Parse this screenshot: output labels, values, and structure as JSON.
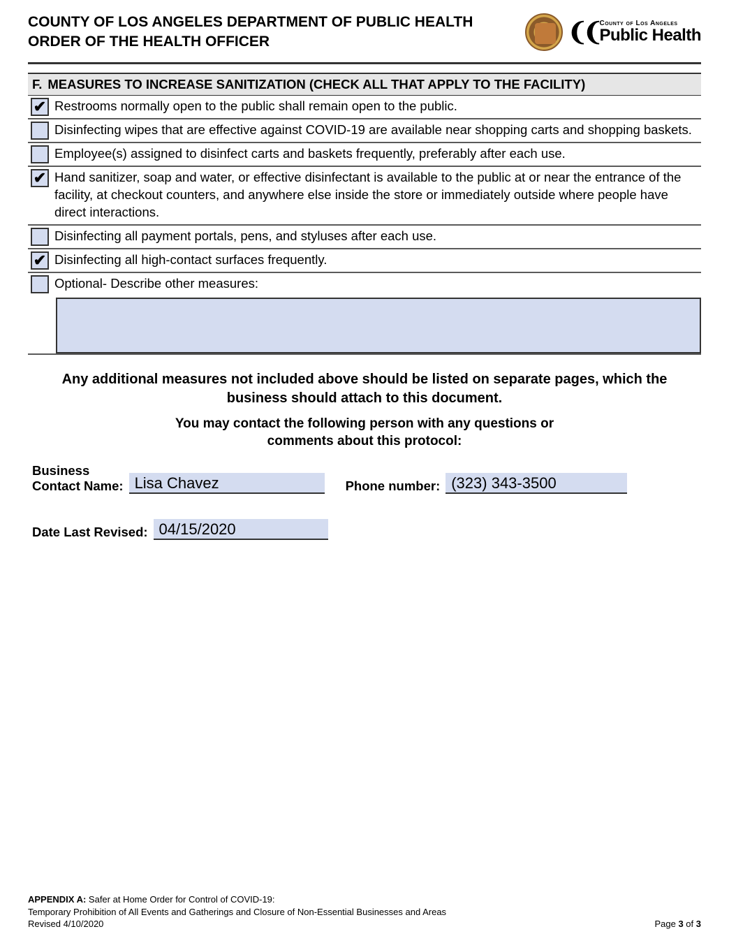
{
  "header": {
    "line1": "COUNTY OF LOS ANGELES DEPARTMENT OF PUBLIC HEALTH",
    "line2": "ORDER OF THE HEALTH OFFICER",
    "logo_top": "County of Los Angeles",
    "logo_bottom": "Public Health"
  },
  "section": {
    "letter": "F.",
    "title": "MEASURES TO INCREASE SANITIZATION (CHECK ALL THAT APPLY TO THE FACILITY)"
  },
  "items": [
    {
      "checked": true,
      "text": "Restrooms normally open to the public shall remain open to the public."
    },
    {
      "checked": false,
      "text": "Disinfecting wipes that are effective against COVID-19 are available near shopping carts and shopping baskets."
    },
    {
      "checked": false,
      "text": "Employee(s) assigned to disinfect carts and baskets frequently, preferably after each use."
    },
    {
      "checked": true,
      "text": "Hand sanitizer, soap and water, or effective disinfectant is available to the public at or near the entrance of the facility, at checkout counters, and anywhere else inside the store or immediately outside where people have direct interactions."
    },
    {
      "checked": false,
      "text": "Disinfecting all payment portals, pens, and styluses after each use."
    },
    {
      "checked": true,
      "text": "Disinfecting all high-contact surfaces frequently."
    },
    {
      "checked": false,
      "text": "Optional- Describe other measures:"
    }
  ],
  "other_measures": "",
  "notes": {
    "line1": "Any additional measures not included above should be listed on separate pages, which the business should attach to this document.",
    "line2": "You may contact the following person with any questions or comments about this protocol:"
  },
  "contact": {
    "name_label": "Business\nContact Name:",
    "name_value": "Lisa Chavez",
    "phone_label": "Phone number:",
    "phone_value": "(323) 343-3500",
    "date_label": "Date Last Revised:",
    "date_value": "04/15/2020"
  },
  "footer": {
    "appendix_label": "APPENDIX A:",
    "appendix_text": " Safer at Home Order for Control of COVID-19:",
    "line2": "Temporary Prohibition of All Events and Gatherings and Closure of Non-Essential Businesses and Areas",
    "line3": "Revised  4/10/2020",
    "page_label": "Page ",
    "page_num": "3",
    "page_of": " of ",
    "page_total": "3"
  },
  "colors": {
    "field_bg": "#d4dcf0",
    "border": "#333333",
    "row_border": "#5a5a5a",
    "section_bg": "#e6e6e6"
  },
  "checkmark_glyph": "✔"
}
